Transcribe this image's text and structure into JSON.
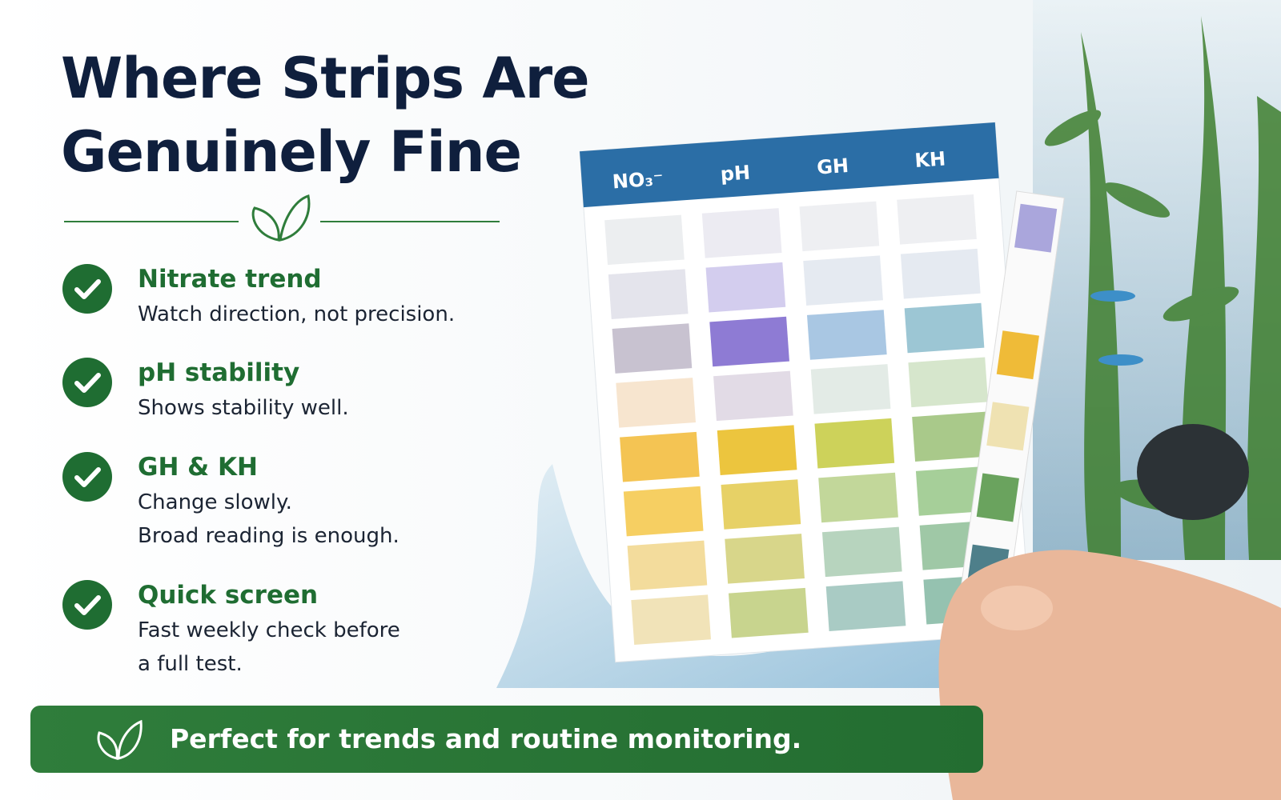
{
  "title": "Where Strips Are Genuinely Fine",
  "items": [
    {
      "heading": "Nitrate trend",
      "lines": [
        "Watch direction, not precision."
      ]
    },
    {
      "heading": "pH stability",
      "lines": [
        "Shows stability well."
      ]
    },
    {
      "heading": "GH & KH",
      "lines": [
        "Change slowly.",
        "Broad reading is enough."
      ]
    },
    {
      "heading": "Quick screen",
      "lines": [
        "Fast weekly check before",
        "a full test."
      ]
    }
  ],
  "chart_columns": [
    "NO₃⁻",
    "pH",
    "GH",
    "KH"
  ],
  "banner": "Perfect for trends and routine monitoring."
}
